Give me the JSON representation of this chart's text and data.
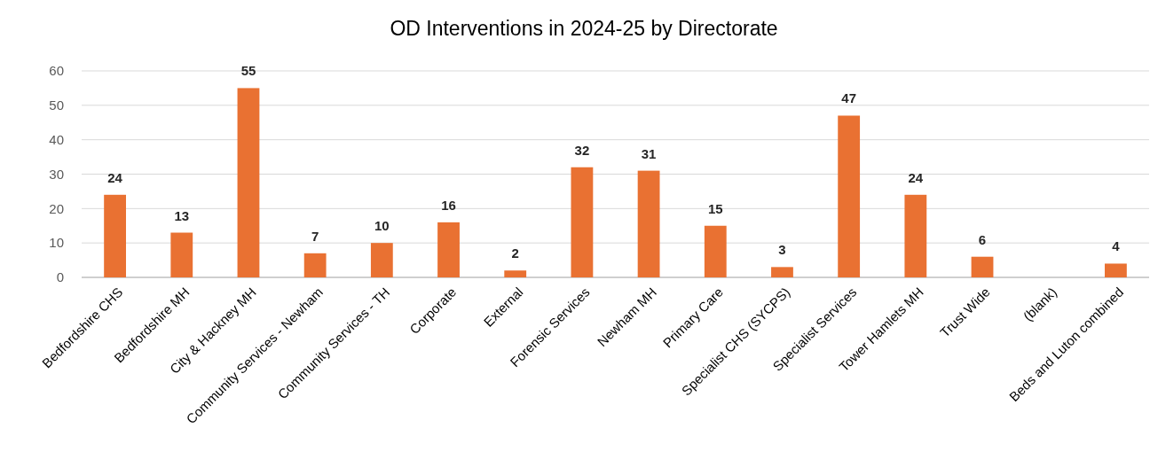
{
  "chart_data": {
    "type": "bar",
    "title": "OD Interventions in 2024-25 by Directorate",
    "categories": [
      "Bedfordshire CHS",
      "Bedfordshire MH",
      "City & Hackney MH",
      "Community Services - Newham",
      "Community Services - TH",
      "Corporate",
      "External",
      "Forensic Services",
      "Newham MH",
      "Primary Care",
      "Specialist CHS (SYCPS)",
      "Specialist Services",
      "Tower Hamlets MH",
      "Trust Wide",
      "(blank)",
      "Beds and Luton combined"
    ],
    "values": [
      24,
      13,
      55,
      7,
      10,
      16,
      2,
      32,
      31,
      15,
      3,
      47,
      24,
      6,
      null,
      4
    ],
    "color": "#e97132",
    "ylim": [
      0,
      60
    ],
    "yticks": [
      0,
      10,
      20,
      30,
      40,
      50,
      60
    ],
    "grid": "y",
    "data_labels": true
  }
}
